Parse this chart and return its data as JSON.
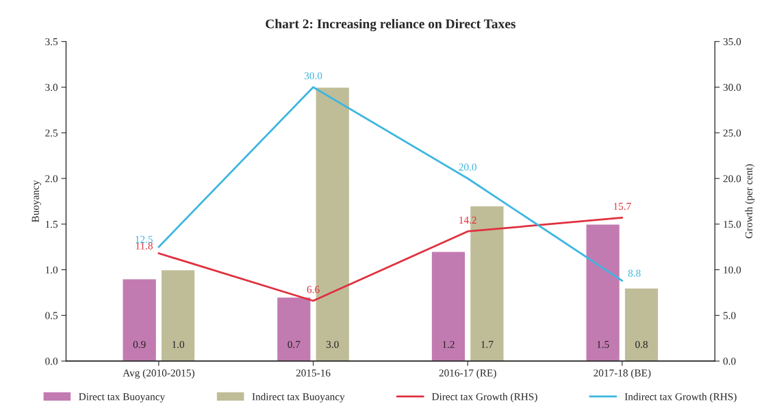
{
  "chart_data": {
    "type": "bar",
    "title": "Chart 2: Increasing reliance on Direct Taxes",
    "ylabel": "Buoyancy",
    "y2label": "Growth (per cent)",
    "categories": [
      "Avg (2010-2015)",
      "2015-16",
      "2016-17 (RE)",
      "2017-18 (BE)"
    ],
    "series": [
      {
        "name": "Direct tax Buoyancy",
        "color": "#c27bb0",
        "values": [
          0.9,
          0.7,
          1.2,
          1.5
        ],
        "value_labels": [
          "0.9",
          "0.7",
          "1.2",
          "1.5"
        ]
      },
      {
        "name": "Indirect tax Buoyancy",
        "color": "#bfbd98",
        "values": [
          1.0,
          3.0,
          1.7,
          0.8
        ],
        "value_labels": [
          "1.0",
          "3.0",
          "1.7",
          "0.8"
        ]
      },
      {
        "name": "Direct tax Growth (RHS)",
        "type": "line",
        "axis": "y2",
        "color": "#e0303e",
        "values": [
          11.8,
          6.6,
          14.2,
          15.7
        ],
        "value_labels": [
          "11.8",
          "6.6",
          "14.2",
          "15.7"
        ]
      },
      {
        "name": "Indirect tax Growth (RHS)",
        "type": "line",
        "axis": "y2",
        "color": "#3eb6e0",
        "values": [
          12.5,
          30.0,
          20.0,
          8.8
        ],
        "value_labels": [
          "12.5",
          "30.0",
          "20.0",
          "8.8"
        ]
      }
    ],
    "ylim": [
      0,
      3.5
    ],
    "yticks": [
      {
        "value": 0,
        "label": "0.0"
      },
      {
        "value": 0.5,
        "label": "0.5"
      },
      {
        "value": 1,
        "label": "1.0"
      },
      {
        "value": 1.5,
        "label": "1.5"
      },
      {
        "value": 2,
        "label": "2.0"
      },
      {
        "value": 2.5,
        "label": "2.5"
      },
      {
        "value": 3,
        "label": "3.0"
      },
      {
        "value": 3.5,
        "label": "3.5"
      }
    ],
    "y2lim": [
      0,
      35
    ],
    "y2ticks": [
      {
        "value": 0,
        "label": "0.0"
      },
      {
        "value": 5,
        "label": "5.0"
      },
      {
        "value": 10,
        "label": "10.0"
      },
      {
        "value": 15,
        "label": "15.0"
      },
      {
        "value": 20,
        "label": "20.0"
      },
      {
        "value": 25,
        "label": "25.0"
      },
      {
        "value": 30,
        "label": "30.0"
      },
      {
        "value": 35,
        "label": "35.0"
      }
    ],
    "legend": "bottom",
    "grid": false
  }
}
